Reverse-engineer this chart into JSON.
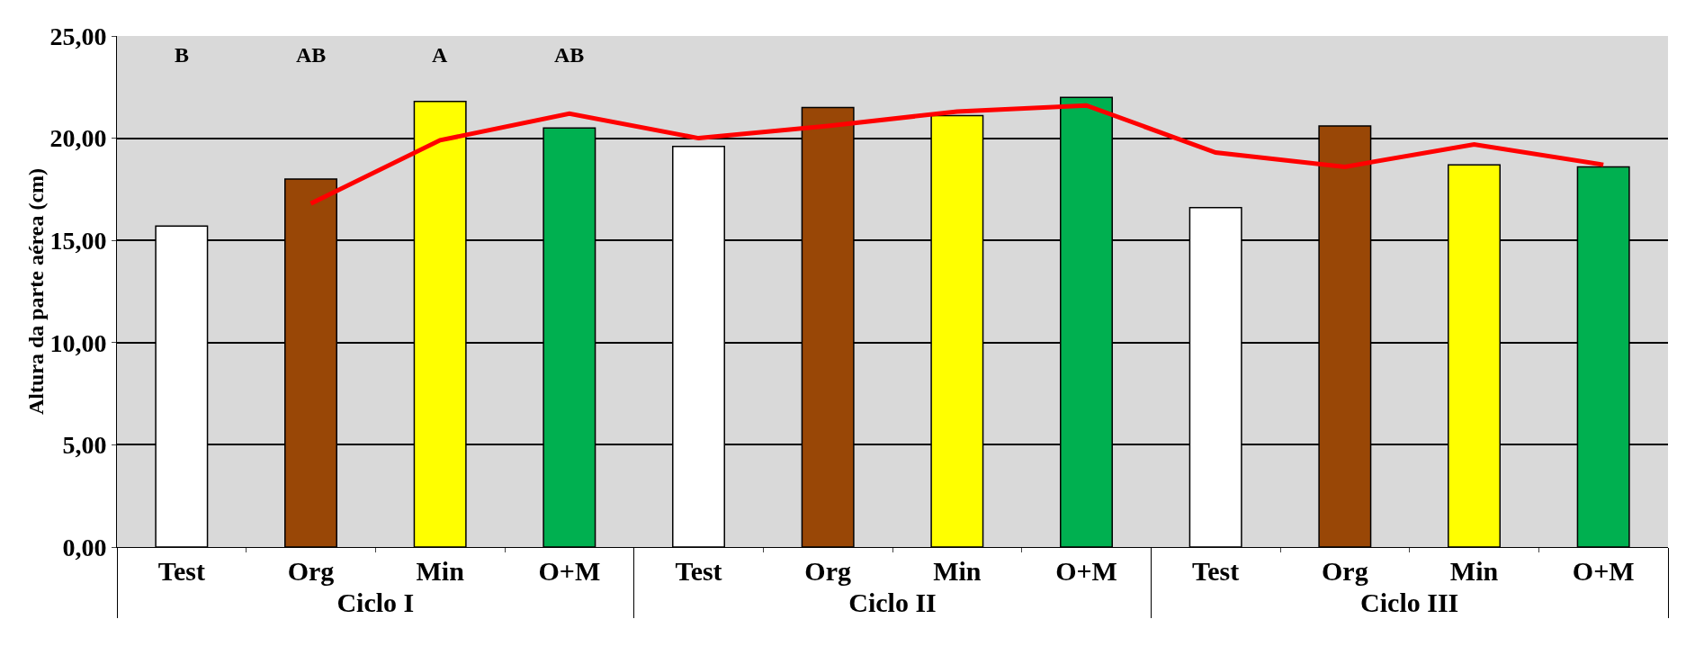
{
  "chart_data": {
    "type": "bar",
    "ylabel": "Altura da parte aérea (cm)",
    "categories": [
      "Test",
      "Org",
      "Min",
      "O+M",
      "Test",
      "Org",
      "Min",
      "O+M",
      "Test",
      "Org",
      "Min",
      "O+M"
    ],
    "series": [
      {
        "colors": [
          "#ffffff",
          "#994706",
          "#ffff00",
          "#00b050",
          "#ffffff",
          "#994706",
          "#ffff00",
          "#00b050",
          "#ffffff",
          "#994706",
          "#ffff00",
          "#00b050"
        ],
        "values": [
          15.7,
          18.0,
          21.8,
          20.5,
          19.6,
          21.5,
          21.1,
          22.0,
          16.6,
          20.6,
          18.7,
          18.6
        ]
      },
      {
        "type": "line",
        "color": "#ff0000",
        "values": [
          null,
          16.8,
          19.9,
          21.2,
          20.0,
          20.6,
          21.3,
          21.6,
          19.3,
          18.6,
          19.7,
          18.7
        ]
      }
    ],
    "ylim": [
      0,
      25
    ],
    "yticks": [
      {
        "value": 0,
        "label": "0,00"
      },
      {
        "value": 5,
        "label": "5,00"
      },
      {
        "value": 10,
        "label": "10,00"
      },
      {
        "value": 15,
        "label": "15,00"
      },
      {
        "value": 20,
        "label": "20,00"
      },
      {
        "value": 25,
        "label": "25,00"
      }
    ],
    "grid": "y",
    "marker": "none",
    "line_style": "solid",
    "annotations": [
      "Ciclo I",
      "Ciclo II",
      "Ciclo III",
      "B",
      "AB",
      "A",
      "AB"
    ]
  }
}
